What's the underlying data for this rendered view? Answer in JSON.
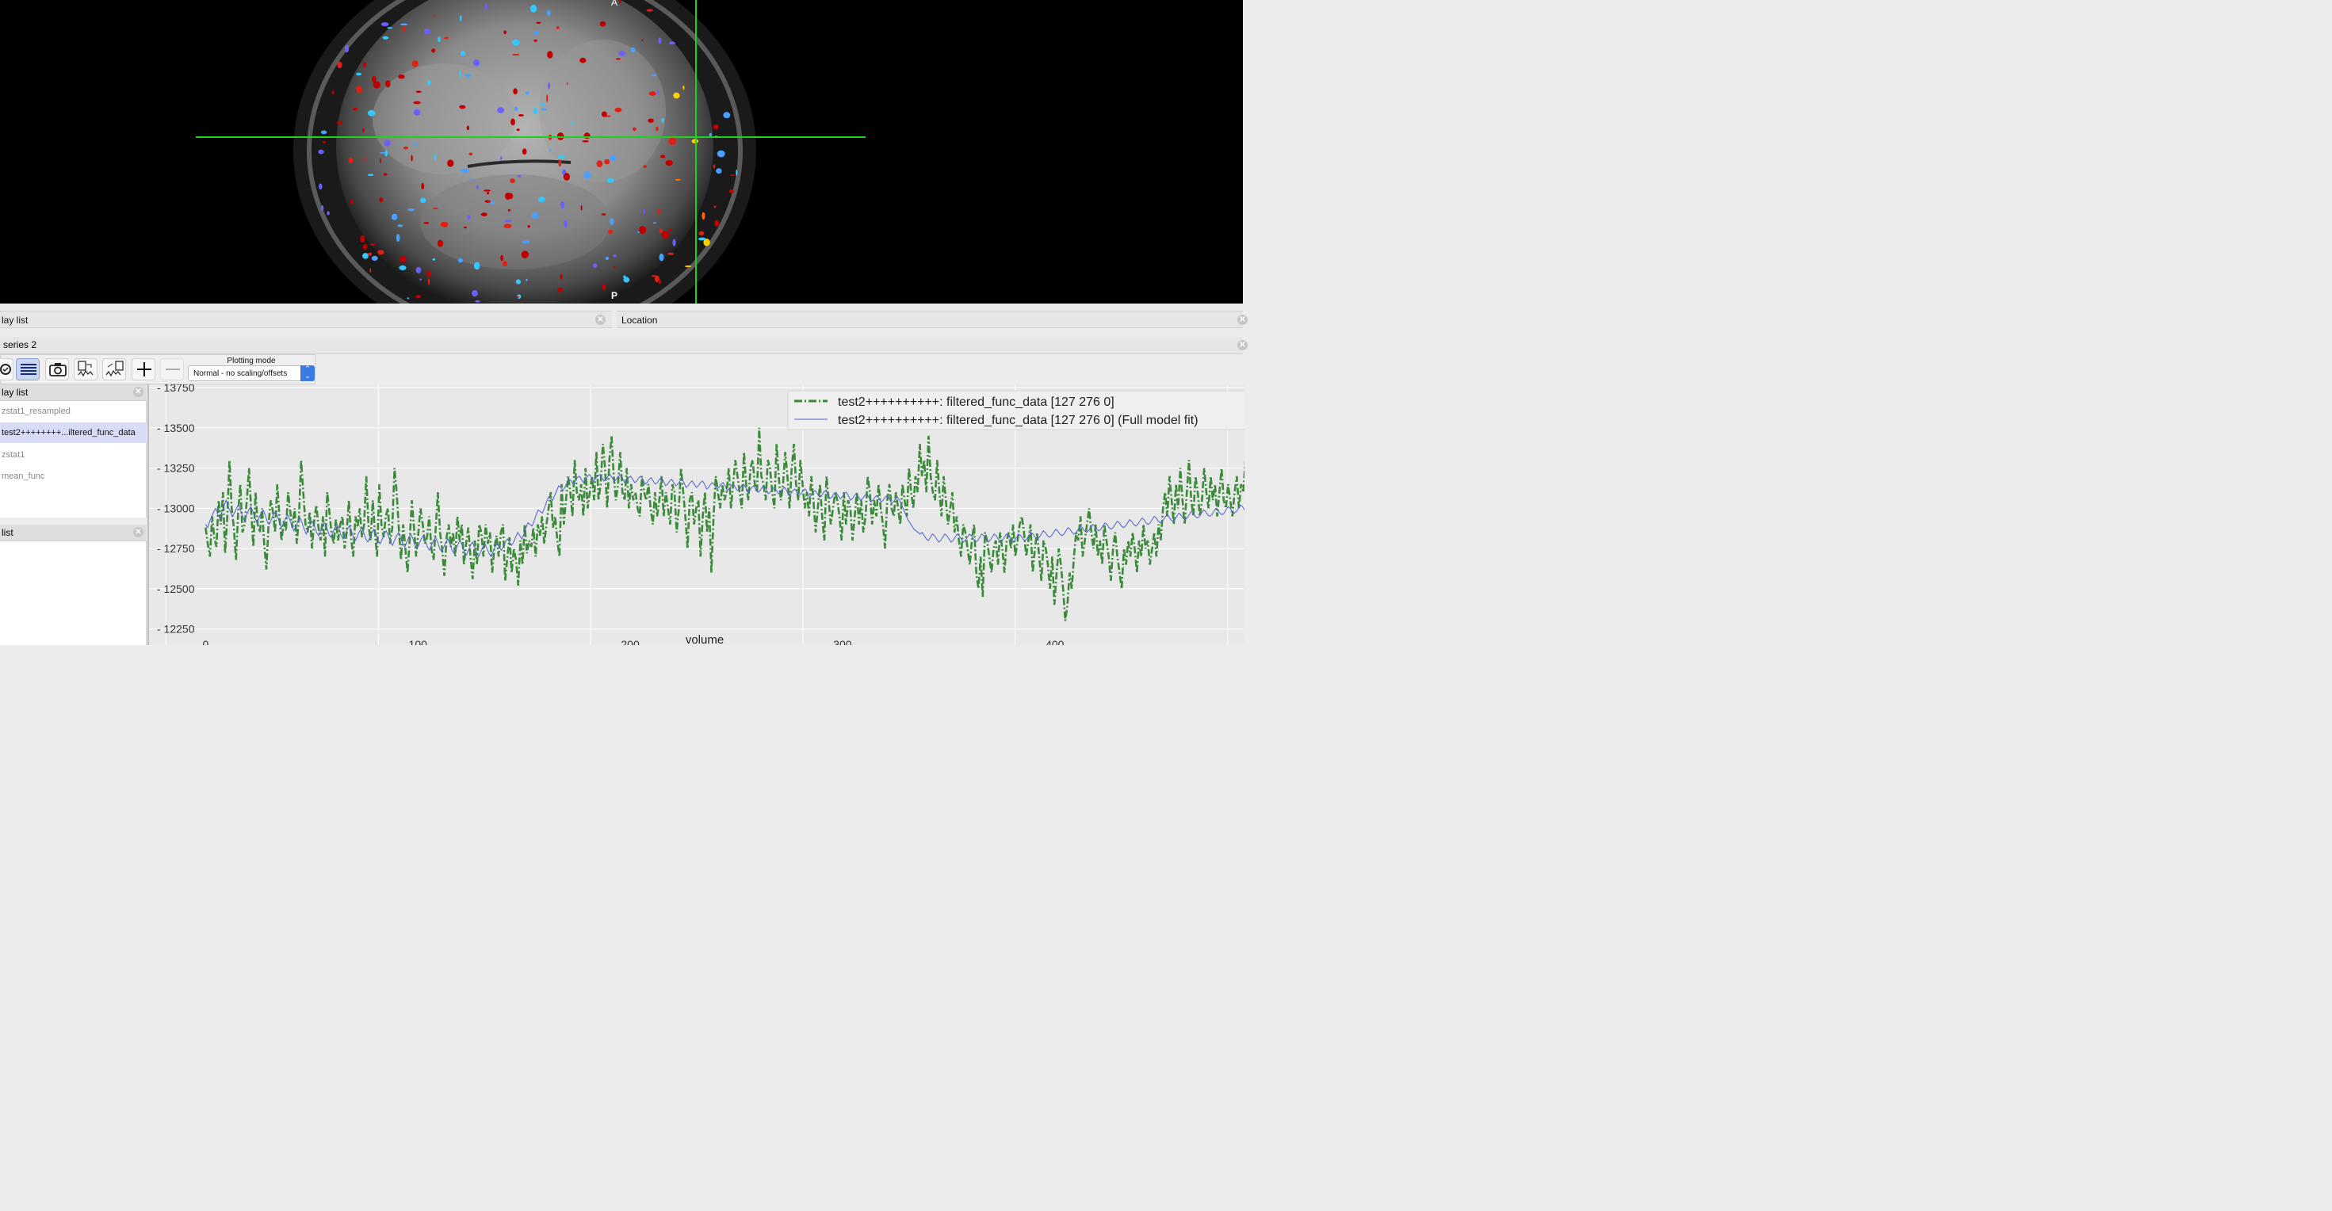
{
  "viewer": {
    "orientation_top": "A",
    "orientation_bottom": "P",
    "cursor_color": "#1fd11f",
    "background_color": "#000000"
  },
  "overlay_panel": {
    "title": "lay list",
    "close_icon": "close-icon"
  },
  "location_panel": {
    "title": "Location",
    "close_icon": "close-icon"
  },
  "timeseries": {
    "title": "series 2",
    "toolbar": {
      "buttons": [
        "settings-icon",
        "list-icon",
        "camera-icon",
        "import-data-icon",
        "export-data-icon",
        "add-icon",
        "remove-icon"
      ],
      "plotting_mode_label": "Plotting mode",
      "plotting_mode_value": "Normal - no scaling/offsets"
    },
    "overlay_list": {
      "title": "lay list",
      "items": [
        "zstat1_resampled",
        "test2++++++++...iltered_func_data",
        "zstat1",
        "mean_func"
      ],
      "selected_index": 1
    },
    "plot_list": {
      "title": "list",
      "items": []
    }
  },
  "chart_data": {
    "type": "line",
    "xlabel": "volume",
    "ylabel": "",
    "xlim": [
      -5,
      505
    ],
    "ylim": [
      12150,
      13770
    ],
    "xticks": [
      0,
      100,
      200,
      300,
      400,
      500
    ],
    "yticks": [
      12250,
      12500,
      12750,
      13000,
      13250,
      13500,
      13750
    ],
    "ytick_labels": [
      "- 12250",
      "- 12500",
      "- 12750",
      "- 13000",
      "- 13250",
      "- 13500",
      "- 13750"
    ],
    "grid": true,
    "legend_position": "top-right",
    "series": [
      {
        "name": "test2++++++++++: filtered_func_data [127 276 0]",
        "color": "#3a8a3a",
        "style": "dashdot",
        "values": [
          12880,
          12780,
          12700,
          12950,
          12820,
          12760,
          13050,
          12900,
          13100,
          12720,
          12950,
          13300,
          13000,
          12880,
          12680,
          12980,
          13150,
          12850,
          12900,
          13050,
          13250,
          12980,
          12760,
          13100,
          12900,
          12850,
          13000,
          12780,
          12620,
          12900,
          13050,
          12980,
          12850,
          13150,
          12950,
          12800,
          12920,
          12860,
          13100,
          12980,
          12880,
          13000,
          12780,
          12950,
          13300,
          13100,
          12900,
          12850,
          12980,
          12750,
          12920,
          13020,
          12880,
          12800,
          12950,
          12700,
          13100,
          12980,
          12850,
          12780,
          12930,
          12800,
          12900,
          12950,
          12750,
          12850,
          13050,
          12820,
          12700,
          12950,
          12880,
          13000,
          12820,
          12900,
          13200,
          12900,
          12800,
          13050,
          12850,
          12700,
          13150,
          12900,
          12820,
          12950,
          13000,
          12780,
          12880,
          13250,
          13100,
          12880,
          12680,
          12900,
          12750,
          12600,
          12800,
          13050,
          12880,
          12700,
          12850,
          13000,
          12900,
          12780,
          12820,
          12950,
          12750,
          12680,
          12880,
          13100,
          12850,
          12740,
          12580,
          12820,
          12900,
          12760,
          12850,
          12700,
          12950,
          12800,
          12900,
          12650,
          12780,
          12880,
          12700,
          12560,
          12800,
          12650,
          12900,
          12850,
          12700,
          12900,
          12780,
          12850,
          12600,
          12750,
          12830,
          12700,
          12850,
          12900,
          12550,
          12700,
          12820,
          12600,
          12750,
          12680,
          12520,
          12800,
          12650,
          12900,
          12720,
          12800,
          12760,
          12880,
          12700,
          12900,
          12830,
          12950,
          12780,
          12900,
          13000,
          13100,
          12880,
          12950,
          12800,
          12700,
          13150,
          12900,
          13050,
          13200,
          13100,
          12950,
          13300,
          13100,
          13050,
          13150,
          12950,
          13250,
          13000,
          13100,
          13200,
          13050,
          13350,
          13050,
          13150,
          13400,
          13250,
          13000,
          13300,
          13450,
          13200,
          13050,
          13150,
          13350,
          13100,
          13050,
          13250,
          13000,
          13150,
          13050,
          13100,
          13000,
          12950,
          13200,
          13100,
          13050,
          13150,
          13000,
          12900,
          13100,
          12950,
          13050,
          13200,
          12950,
          13100,
          13000,
          12900,
          13150,
          13100,
          12850,
          13000,
          13250,
          13100,
          12950,
          12750,
          13050,
          13100,
          12900,
          13000,
          13050,
          12700,
          12950,
          13100,
          12850,
          13000,
          12600,
          12950,
          13200,
          13100,
          13000,
          13150,
          13050,
          13100,
          13250,
          13000,
          13150,
          13300,
          13200,
          13100,
          13000,
          13350,
          13150,
          13050,
          13250,
          13300,
          13150,
          13100,
          13500,
          13200,
          13150,
          13050,
          13300,
          13250,
          13100,
          13000,
          13400,
          13200,
          13050,
          13150,
          13350,
          13200,
          13000,
          13250,
          13400,
          13150,
          13050,
          13300,
          13150,
          13000,
          13100,
          12950,
          13200,
          13050,
          12850,
          13000,
          13150,
          12950,
          12800,
          13200,
          13050,
          12900,
          13000,
          13100,
          13050,
          12950,
          12800,
          13100,
          12900,
          13050,
          13000,
          12800,
          12950,
          13100,
          12900,
          13050,
          12850,
          12950,
          13200,
          13100,
          12900,
          13050,
          12950,
          13150,
          13000,
          12900,
          12750,
          13050,
          13150,
          13000,
          12950,
          13100,
          13000,
          12900,
          13150,
          13050,
          12950,
          13250,
          13100,
          13000,
          13200,
          13100,
          13400,
          13200,
          13300,
          13100,
          13450,
          13200,
          13100,
          13050,
          13300,
          13100,
          12950,
          13200,
          13050,
          12900,
          13000,
          13100,
          12850,
          12950,
          12800,
          12700,
          12900,
          12850,
          12750,
          12650,
          12800,
          12900,
          12600,
          12500,
          12700,
          12450,
          12850,
          12800,
          12700,
          12600,
          12750,
          12800,
          12650,
          12850,
          12750,
          12600,
          12800,
          12850,
          12750,
          12900,
          12700,
          12800,
          12900,
          12950,
          12850,
          12700,
          12800,
          12900,
          12600,
          12750,
          12850,
          12700,
          12550,
          12800,
          12750,
          12650,
          12500,
          12700,
          12400,
          12600,
          12750,
          12650,
          12500,
          12300,
          12400,
          12600,
          12500,
          12700,
          12850,
          12800,
          12950,
          12700,
          12800,
          12900,
          13000,
          12850,
          12750,
          12900,
          12700,
          12800,
          12650,
          12900,
          12800,
          12700,
          12550,
          12750,
          12850,
          12700,
          12600,
          12500,
          12750,
          12650,
          12800,
          12700,
          12850,
          12750,
          12600,
          12800,
          12700,
          12900,
          12750,
          12800,
          12650,
          12750,
          12850,
          12700,
          12900,
          12800,
          13000,
          13100,
          12950,
          13200,
          13050,
          12900,
          13150,
          13000,
          13250,
          13050,
          12900,
          13100,
          13300,
          13050,
          12950,
          13200,
          13100,
          12950,
          13050,
          13250,
          13100,
          13000,
          13200,
          13050,
          13150,
          12950,
          13100,
          13250,
          13050,
          13000,
          13150,
          13050,
          12950,
          13100,
          13200,
          13000,
          13150,
          13100,
          13300,
          13100,
          13000,
          13200,
          13050,
          13150,
          12900,
          13250,
          13000,
          12800,
          12950
        ]
      },
      {
        "name": "test2++++++++++: filtered_func_data [127 276 0] (Full model fit)",
        "color": "#5060d0",
        "style": "solid",
        "values": [
          12900,
          12880,
          12920,
          12950,
          12980,
          13000,
          12960,
          12940,
          12980,
          13020,
          13050,
          13010,
          12980,
          12950,
          12970,
          13000,
          13020,
          12990,
          12950,
          12920,
          12960,
          12990,
          13010,
          12980,
          12940,
          12910,
          12940,
          12970,
          12990,
          12960,
          12920,
          12900,
          12930,
          12960,
          12980,
          12950,
          12910,
          12880,
          12910,
          12940,
          12960,
          12930,
          12890,
          12860,
          12890,
          12920,
          12940,
          12910,
          12870,
          12840,
          12870,
          12900,
          12920,
          12890,
          12850,
          12830,
          12860,
          12890,
          12910,
          12880,
          12840,
          12820,
          12850,
          12880,
          12900,
          12870,
          12830,
          12810,
          12840,
          12870,
          12890,
          12860,
          12820,
          12800,
          12830,
          12860,
          12880,
          12850,
          12810,
          12790,
          12820,
          12850,
          12870,
          12840,
          12800,
          12780,
          12810,
          12840,
          12860,
          12830,
          12790,
          12770,
          12800,
          12830,
          12850,
          12820,
          12780,
          12760,
          12790,
          12820,
          12840,
          12810,
          12770,
          12750,
          12780,
          12810,
          12830,
          12800,
          12760,
          12740,
          12770,
          12800,
          12820,
          12790,
          12750,
          12730,
          12760,
          12790,
          12810,
          12780,
          12740,
          12720,
          12750,
          12780,
          12800,
          12770,
          12730,
          12710,
          12740,
          12770,
          12790,
          12760,
          12720,
          12700,
          12730,
          12760,
          12780,
          12750,
          12720,
          12700,
          12730,
          12760,
          12780,
          12760,
          12740,
          12760,
          12790,
          12810,
          12790,
          12770,
          12790,
          12820,
          12850,
          12830,
          12810,
          12840,
          12880,
          12910,
          12900,
          12890,
          12920,
          12960,
          12990,
          12980,
          12970,
          13000,
          13040,
          13070,
          13060,
          13050,
          13080,
          13110,
          13140,
          13130,
          13110,
          13130,
          13160,
          13180,
          13170,
          13150,
          13170,
          13190,
          13200,
          13180,
          13160,
          13180,
          13200,
          13210,
          13190,
          13170,
          13190,
          13200,
          13210,
          13190,
          13170,
          13180,
          13200,
          13210,
          13190,
          13170,
          13180,
          13200,
          13210,
          13190,
          13160,
          13170,
          13190,
          13200,
          13180,
          13160,
          13170,
          13190,
          13200,
          13180,
          13150,
          13160,
          13180,
          13190,
          13170,
          13150,
          13160,
          13180,
          13190,
          13170,
          13140,
          13150,
          13170,
          13180,
          13160,
          13140,
          13150,
          13170,
          13180,
          13160,
          13130,
          13140,
          13160,
          13170,
          13150,
          13130,
          13140,
          13160,
          13170,
          13150,
          13120,
          13130,
          13150,
          13160,
          13140,
          13120,
          13130,
          13150,
          13160,
          13140,
          13110,
          13120,
          13140,
          13150,
          13130,
          13110,
          13120,
          13140,
          13150,
          13130,
          13100,
          13110,
          13130,
          13140,
          13120,
          13100,
          13110,
          13130,
          13140,
          13120,
          13090,
          13100,
          13120,
          13130,
          13110,
          13090,
          13100,
          13120,
          13130,
          13110,
          13080,
          13090,
          13110,
          13120,
          13100,
          13080,
          13090,
          13110,
          13120,
          13100,
          13070,
          13080,
          13100,
          13110,
          13090,
          13070,
          13080,
          13100,
          13110,
          13090,
          13060,
          13070,
          13090,
          13100,
          13080,
          13060,
          13070,
          13090,
          13100,
          13080,
          13050,
          13060,
          13080,
          13090,
          13070,
          13050,
          13060,
          13080,
          13090,
          13070,
          13040,
          13050,
          13070,
          13080,
          13060,
          13040,
          13050,
          13070,
          13080,
          13060,
          13030,
          13040,
          13060,
          13070,
          13050,
          13020,
          12990,
          12960,
          12930,
          12910,
          12890,
          12870,
          12860,
          12850,
          12840,
          12850,
          12830,
          12810,
          12800,
          12820,
          12840,
          12830,
          12810,
          12790,
          12800,
          12820,
          12840,
          12830,
          12810,
          12790,
          12800,
          12820,
          12840,
          12830,
          12810,
          12790,
          12800,
          12820,
          12840,
          12830,
          12810,
          12790,
          12800,
          12820,
          12840,
          12830,
          12810,
          12790,
          12800,
          12820,
          12840,
          12830,
          12810,
          12790,
          12800,
          12820,
          12840,
          12830,
          12810,
          12790,
          12800,
          12820,
          12840,
          12830,
          12810,
          12800,
          12810,
          12830,
          12850,
          12840,
          12820,
          12810,
          12820,
          12840,
          12860,
          12850,
          12830,
          12820,
          12830,
          12850,
          12870,
          12860,
          12840,
          12830,
          12840,
          12860,
          12880,
          12870,
          12850,
          12840,
          12850,
          12870,
          12890,
          12880,
          12860,
          12850,
          12860,
          12880,
          12900,
          12890,
          12870,
          12860,
          12870,
          12890,
          12910,
          12900,
          12880,
          12870,
          12880,
          12900,
          12920,
          12910,
          12890,
          12880,
          12890,
          12910,
          12930,
          12920,
          12900,
          12890,
          12900,
          12920,
          12940,
          12930,
          12910,
          12900,
          12910,
          12930,
          12950,
          12940,
          12920,
          12910,
          12920,
          12940,
          12960,
          12950,
          12930,
          12920,
          12930,
          12950,
          12970,
          12960,
          12940,
          12930,
          12940,
          12960,
          12980,
          12970,
          12950,
          12940,
          12950,
          12970,
          12990,
          12980,
          12960,
          12950,
          12960,
          12980,
          13000,
          12990,
          12970,
          12960,
          12970,
          12990,
          13010,
          13000,
          12980,
          12970,
          12980,
          13000,
          13020,
          13010,
          12990,
          12980,
          12990,
          13010,
          13030,
          13020,
          13000,
          12990,
          13000,
          12980,
          12960,
          12950
        ]
      }
    ]
  }
}
